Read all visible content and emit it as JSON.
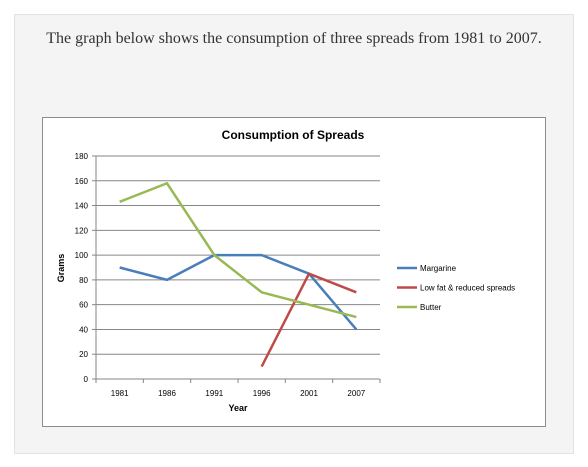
{
  "caption": "The graph below shows the consumption of three spreads from 1981 to 2007.",
  "colors": {
    "Margarine": "#4a7ebb",
    "Low fat & reduced spreads": "#be4b48",
    "Butter": "#98b954"
  },
  "chart_data": {
    "type": "line",
    "title": "Consumption of Spreads",
    "xlabel": "Year",
    "ylabel": "Grams",
    "categories": [
      "1981",
      "1986",
      "1991",
      "1996",
      "2001",
      "2007"
    ],
    "ylim": [
      0,
      180
    ],
    "yticks": [
      0,
      20,
      40,
      60,
      80,
      100,
      120,
      140,
      160,
      180
    ],
    "grid": true,
    "legend_position": "right",
    "series": [
      {
        "name": "Margarine",
        "values": [
          90,
          80,
          100,
          100,
          85,
          40
        ]
      },
      {
        "name": "Low fat & reduced spreads",
        "values": [
          null,
          null,
          null,
          10,
          85,
          70
        ]
      },
      {
        "name": "Butter",
        "values": [
          143,
          158,
          100,
          70,
          60,
          50
        ]
      }
    ]
  }
}
